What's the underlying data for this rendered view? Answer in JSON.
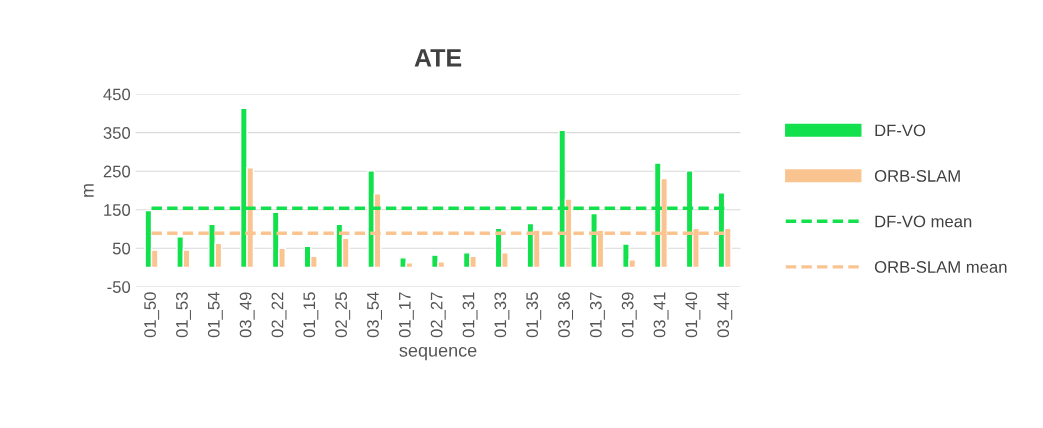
{
  "chart_data": {
    "type": "bar",
    "title": "ATE",
    "xlabel": "sequence",
    "ylabel": "m",
    "categories": [
      "01_50",
      "01_53",
      "01_54",
      "03_49",
      "02_22",
      "01_15",
      "02_25",
      "03_54",
      "01_17",
      "02_27",
      "01_31",
      "01_33",
      "01_35",
      "03_36",
      "01_37",
      "01_39",
      "03_41",
      "01_40",
      "03_44"
    ],
    "series": [
      {
        "name": "DF-VO",
        "color": "#12e04c",
        "values": [
          148,
          80,
          112,
          413,
          143,
          55,
          112,
          251,
          25,
          32,
          38,
          102,
          114,
          356,
          140,
          61,
          271,
          251,
          194
        ]
      },
      {
        "name": "ORB-SLAM",
        "color": "#f9c490",
        "values": [
          45,
          45,
          63,
          259,
          50,
          29,
          76,
          191,
          12,
          15,
          29,
          38,
          97,
          178,
          97,
          20,
          231,
          102,
          102
        ]
      },
      {
        "name": "DF-VO mean",
        "type": "line",
        "line_style": "dashed",
        "color": "#12e04c",
        "values": [
          154,
          154,
          154,
          154,
          154,
          154,
          154,
          154,
          154,
          154,
          154,
          154,
          154,
          154,
          154,
          154,
          154,
          154,
          154
        ]
      },
      {
        "name": "ORB-SLAM mean",
        "type": "line",
        "line_style": "dashed",
        "color": "#f9c490",
        "values": [
          89,
          89,
          89,
          89,
          89,
          89,
          89,
          89,
          89,
          89,
          89,
          89,
          89,
          89,
          89,
          89,
          89,
          89,
          89
        ]
      }
    ],
    "ylim": [
      -50,
      450
    ],
    "yticks": [
      -50,
      50,
      150,
      250,
      350,
      450
    ],
    "grid": "y",
    "legend": "right"
  }
}
